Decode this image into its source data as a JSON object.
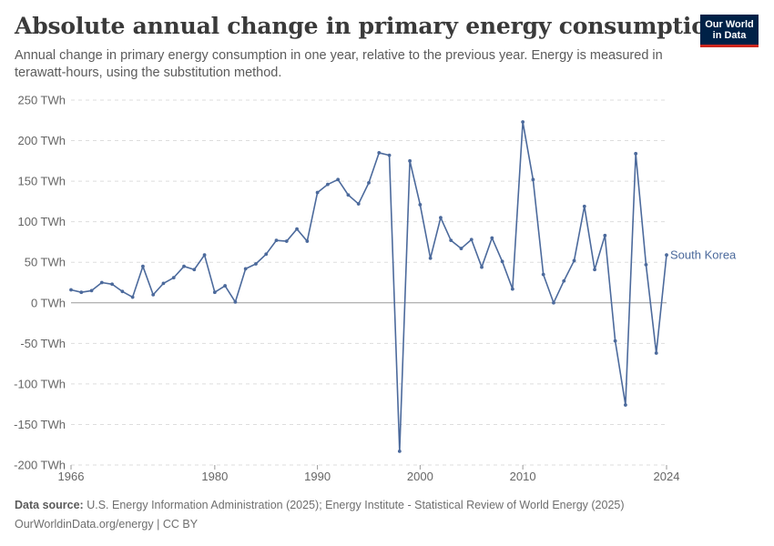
{
  "header": {
    "title": "Absolute annual change in primary energy consumption",
    "subtitle": "Annual change in primary energy consumption in one year, relative to the previous year. Energy is measured in terawatt-hours, using the substitution method."
  },
  "logo": {
    "line1": "Our World",
    "line2": "in Data",
    "background": "#002147",
    "accent": "#ce261e"
  },
  "footer": {
    "source_label": "Data source:",
    "source_text": "U.S. Energy Information Administration (2025); Energy Institute - Statistical Review of World Energy (2025)",
    "link_text": "OurWorldinData.org/energy",
    "license_text": "| CC BY"
  },
  "chart_data": {
    "type": "line",
    "title": "Absolute annual change in primary energy consumption",
    "xlabel": "",
    "ylabel": "",
    "ylim": [
      -200,
      250
    ],
    "xlim": [
      1966,
      2024
    ],
    "y_ticks": [
      -200,
      -150,
      -100,
      -50,
      0,
      50,
      100,
      150,
      200,
      250
    ],
    "y_tick_labels": [
      "-200 TWh",
      "-150 TWh",
      "-100 TWh",
      "-50 TWh",
      "0 TWh",
      "50 TWh",
      "100 TWh",
      "150 TWh",
      "200 TWh",
      "250 TWh"
    ],
    "x_ticks": [
      1966,
      1980,
      1990,
      2000,
      2010,
      2024
    ],
    "x_tick_labels": [
      "1966",
      "1980",
      "1990",
      "2000",
      "2010",
      "2024"
    ],
    "grid": "horizontal dashed",
    "legend": "end-of-line label",
    "series": [
      {
        "name": "South Korea",
        "color": "#4c6a9c",
        "x": [
          1966,
          1967,
          1968,
          1969,
          1970,
          1971,
          1972,
          1973,
          1974,
          1975,
          1976,
          1977,
          1978,
          1979,
          1980,
          1981,
          1982,
          1983,
          1984,
          1985,
          1986,
          1987,
          1988,
          1989,
          1990,
          1991,
          1992,
          1993,
          1994,
          1995,
          1996,
          1997,
          1998,
          1999,
          2000,
          2001,
          2002,
          2003,
          2004,
          2005,
          2006,
          2007,
          2008,
          2009,
          2010,
          2011,
          2012,
          2013,
          2014,
          2015,
          2016,
          2017,
          2018,
          2019,
          2020,
          2021,
          2022,
          2023,
          2024
        ],
        "values": [
          16,
          13,
          15,
          25,
          23,
          14,
          7,
          45,
          10,
          24,
          31,
          45,
          41,
          59,
          13,
          21,
          1,
          42,
          48,
          60,
          77,
          76,
          91,
          76,
          136,
          146,
          152,
          133,
          122,
          148,
          185,
          182,
          -183,
          175,
          121,
          55,
          105,
          77,
          67,
          78,
          44,
          80,
          51,
          17,
          223,
          152,
          35,
          0,
          27,
          52,
          119,
          41,
          83,
          -47,
          -126,
          184,
          47,
          -62,
          59
        ]
      }
    ]
  }
}
